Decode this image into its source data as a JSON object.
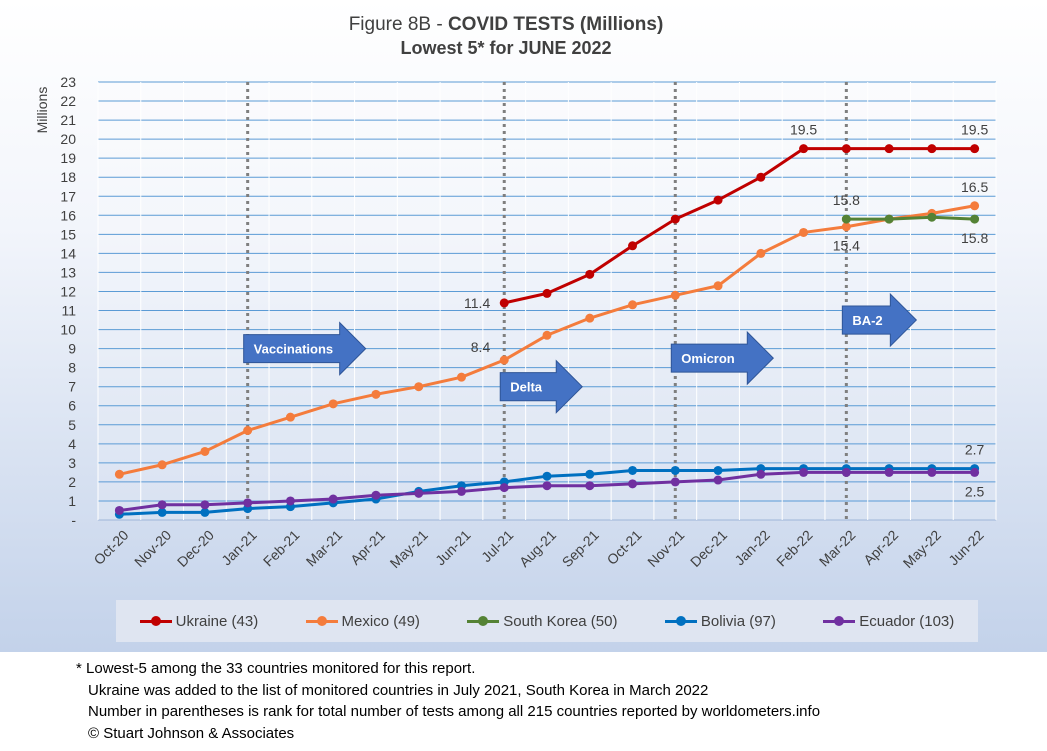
{
  "title": {
    "prefix": "Figure 8B - ",
    "bold": "COVID TESTS (Millions)",
    "line2": "Lowest 5* for JUNE 2022"
  },
  "chart_data": {
    "type": "line",
    "ylabel": "Millions",
    "ylim": [
      0,
      23
    ],
    "y_ticks": [
      "-",
      "1",
      "2",
      "3",
      "4",
      "5",
      "6",
      "7",
      "8",
      "9",
      "10",
      "11",
      "12",
      "13",
      "14",
      "15",
      "16",
      "17",
      "18",
      "19",
      "20",
      "21",
      "22",
      "23"
    ],
    "categories": [
      "Oct-20",
      "Nov-20",
      "Dec-20",
      "Jan-21",
      "Feb-21",
      "Mar-21",
      "Apr-21",
      "May-21",
      "Jun-21",
      "Jul-21",
      "Aug-21",
      "Sep-21",
      "Oct-21",
      "Nov-21",
      "Dec-21",
      "Jan-22",
      "Feb-22",
      "Mar-22",
      "Apr-22",
      "May-22",
      "Jun-22"
    ],
    "grid": true,
    "legend_position": "bottom",
    "series": [
      {
        "name": "Ukraine (43)",
        "color": "#c00000",
        "values": [
          null,
          null,
          null,
          null,
          null,
          null,
          null,
          null,
          null,
          11.4,
          11.9,
          12.9,
          14.4,
          15.8,
          16.8,
          18.0,
          19.5,
          19.5,
          19.5,
          19.5,
          19.5
        ]
      },
      {
        "name": "Mexico (49)",
        "color": "#f47c3c",
        "values": [
          2.4,
          2.9,
          3.6,
          4.7,
          5.4,
          6.1,
          6.6,
          7.0,
          7.5,
          8.4,
          9.7,
          10.6,
          11.3,
          11.8,
          12.3,
          14.0,
          15.1,
          15.4,
          15.8,
          16.1,
          16.5
        ]
      },
      {
        "name": "South Korea (50)",
        "color": "#548235",
        "values": [
          null,
          null,
          null,
          null,
          null,
          null,
          null,
          null,
          null,
          null,
          null,
          null,
          null,
          null,
          null,
          null,
          null,
          15.8,
          15.8,
          15.9,
          15.8
        ]
      },
      {
        "name": "Bolivia (97)",
        "color": "#0070c0",
        "values": [
          0.3,
          0.4,
          0.4,
          0.6,
          0.7,
          0.9,
          1.1,
          1.5,
          1.8,
          2.0,
          2.3,
          2.4,
          2.6,
          2.6,
          2.6,
          2.7,
          2.7,
          2.7,
          2.7,
          2.7,
          2.7
        ]
      },
      {
        "name": "Ecuador (103)",
        "color": "#7030a0",
        "values": [
          0.5,
          0.8,
          0.8,
          0.9,
          1.0,
          1.1,
          1.3,
          1.4,
          1.5,
          1.7,
          1.8,
          1.8,
          1.9,
          2.0,
          2.1,
          2.4,
          2.5,
          2.5,
          2.5,
          2.5,
          2.5
        ]
      }
    ],
    "annotations": [
      {
        "text": "19.5",
        "x": "Feb-22",
        "y": 19.5,
        "anchor": "above"
      },
      {
        "text": "19.5",
        "x": "Jun-22",
        "y": 19.5,
        "anchor": "above"
      },
      {
        "text": "11.4",
        "x": "Jul-21",
        "y": 11.4,
        "anchor": "left"
      },
      {
        "text": "16.5",
        "x": "Jun-22",
        "y": 16.5,
        "anchor": "above"
      },
      {
        "text": "15.8",
        "x": "Mar-22",
        "y": 15.8,
        "anchor": "above"
      },
      {
        "text": "15.4",
        "x": "Mar-22",
        "y": 15.4,
        "anchor": "below"
      },
      {
        "text": "15.8",
        "x": "Jun-22",
        "y": 15.8,
        "anchor": "below"
      },
      {
        "text": "8.4",
        "x": "Jul-21",
        "y": 8.4,
        "anchor": "above-left"
      },
      {
        "text": "2.7",
        "x": "Jun-22",
        "y": 2.7,
        "anchor": "above"
      },
      {
        "text": "2.5",
        "x": "Jun-22",
        "y": 2.5,
        "anchor": "below"
      }
    ],
    "event_lines": [
      "Jan-21",
      "Jul-21",
      "Nov-21",
      "Mar-22"
    ],
    "event_arrows": [
      {
        "text": "Vaccinations",
        "x": "Jan-21",
        "y": 9
      },
      {
        "text": "Delta",
        "x": "Jul-21",
        "y": 7
      },
      {
        "text": "Omicron",
        "x": "Nov-21",
        "y": 8.5
      },
      {
        "text": "BA-2",
        "x": "Mar-22",
        "y": 10.5
      }
    ],
    "arrow_color": "#4472c4",
    "event_line_color": "#7f7f7f"
  },
  "footnotes": [
    "* Lowest-5 among the 33 countries monitored for this report.",
    "Ukraine was added to the list of monitored countries in July 2021, South Korea in March 2022",
    "Number in parentheses is rank for total number of tests among all 215 countries reported by worldometers.info",
    "© Stuart Johnson & Associates"
  ]
}
